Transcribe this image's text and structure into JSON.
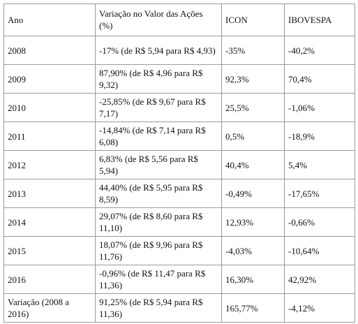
{
  "table": {
    "headers": [
      "Ano",
      "Variação no Valor das Ações (%)",
      "ICON",
      "IBOVESPA"
    ],
    "rows": [
      [
        "2008",
        "-17% (de R$ 5,94 para R$ 4,93)",
        "-35%",
        "-40,2%"
      ],
      [
        "2009",
        "87,90% (de R$ 4,96 para R$ 9,32)",
        "92,3%",
        "70,4%"
      ],
      [
        "2010",
        "-25,85% (de R$ 9,67 para R$ 7,17)",
        "25,5%",
        "-1,06%"
      ],
      [
        "2011",
        "-14,84% (de R$ 7,14 para R$ 6,08)",
        "0,5%",
        "-18,9%"
      ],
      [
        "2012",
        "6,83% (de R$ 5,56 para R$ 5,94)",
        "40,4%",
        "5,4%"
      ],
      [
        "2013",
        "44,40% (de R$ 5,95 para R$ 8,59)",
        "-0,49%",
        "-17,65%"
      ],
      [
        "2014",
        "29,07% (de R$ 8,60 para R$ 11,10)",
        "12,93%",
        "-0,66%"
      ],
      [
        "2015",
        "18,07% (de R$ 9,96 para R$ 11,76)",
        "-4,03%",
        "-10,64%"
      ],
      [
        "2016",
        "-0,96% (de R$ 11,47 para R$ 11,36)",
        "16,30%",
        "42,92%"
      ],
      [
        "Variação (2008 a 2016)",
        "91,25% (de R$ 5,94 para R$ 11,36)",
        "165,77%",
        "-4,12%"
      ]
    ]
  }
}
